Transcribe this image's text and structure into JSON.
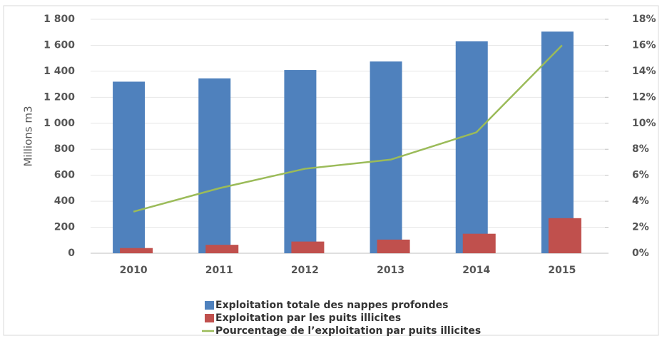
{
  "chart_data": {
    "type": "bar",
    "categories": [
      "2010",
      "2011",
      "2012",
      "2013",
      "2014",
      "2015"
    ],
    "y_label": "Millions m3",
    "series": [
      {
        "name": "Exploitation totale des nappes profondes",
        "color": "#4f81bd",
        "values": [
          1320,
          1345,
          1410,
          1475,
          1630,
          1705
        ]
      },
      {
        "name": "Exploitation par les puits illicites",
        "color": "#c0504d",
        "values": [
          40,
          65,
          90,
          105,
          150,
          270
        ]
      },
      {
        "name": "Pourcentage de l’exploitation par puits illicites",
        "color": "#9bbb59",
        "values": [
          3.2,
          5.0,
          6.5,
          7.2,
          9.3,
          16.0
        ],
        "axis": "y2",
        "type": "line"
      }
    ],
    "ylim": [
      0,
      1800
    ],
    "yticks": [
      0,
      200,
      400,
      600,
      800,
      {
        "value": 1000,
        "label": "1 000"
      },
      {
        "value": 1200,
        "label": "1 200"
      },
      {
        "value": 1400,
        "label": "1 400"
      },
      {
        "value": 1600,
        "label": "1 600"
      },
      {
        "value": 1800,
        "label": "1 800"
      }
    ],
    "y2lim": [
      0,
      18
    ],
    "y2ticks": [
      {
        "value": 0,
        "label": "0%"
      },
      {
        "value": 2,
        "label": "2%"
      },
      {
        "value": 4,
        "label": "4%"
      },
      {
        "value": 6,
        "label": "6%"
      },
      {
        "value": 8,
        "label": "8%"
      },
      {
        "value": 10,
        "label": "10%"
      },
      {
        "value": 12,
        "label": "12%"
      },
      {
        "value": 14,
        "label": "14%"
      },
      {
        "value": 16,
        "label": "16%"
      },
      {
        "value": 18,
        "label": "18%"
      }
    ],
    "grid": true
  }
}
